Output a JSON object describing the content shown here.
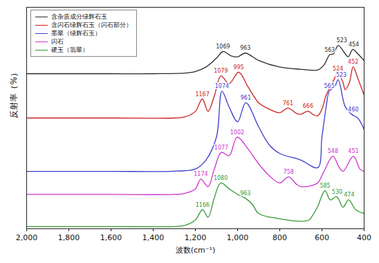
{
  "chart_data": {
    "type": "line",
    "x_label": "波数(cm⁻¹)",
    "y_label": "反射率（%）",
    "xlim": [
      2000,
      400
    ],
    "xticks": [
      2000,
      1800,
      1600,
      1400,
      1200,
      1000,
      800,
      600,
      400
    ],
    "ylim": [
      0,
      100
    ],
    "tick_labels": "x",
    "grid": false,
    "legend": "top-left",
    "series": [
      {
        "name": "含杂质成分绿辉石玉",
        "color": "#2b2b2b",
        "x": [
          2000,
          1800,
          1600,
          1400,
          1250,
          1200,
          1150,
          1100,
          1069,
          1030,
          1000,
          963,
          900,
          800,
          700,
          620,
          590,
          563,
          545,
          523,
          490,
          475,
          454,
          430,
          400
        ],
        "values": [
          70,
          70,
          70,
          70,
          70.3,
          71,
          73,
          77,
          80,
          78,
          77.6,
          79.3,
          76,
          73,
          72,
          71.7,
          74,
          78.6,
          79,
          82.8,
          79,
          77.6,
          81,
          79,
          75.9
        ],
        "peaks": [
          1069,
          963,
          563,
          523,
          454
        ]
      },
      {
        "name": "含闪石绿辉石玉（闪石部分）",
        "color": "#cc1f1f",
        "x": [
          2000,
          1600,
          1300,
          1250,
          1200,
          1167,
          1140,
          1110,
          1079,
          1040,
          995,
          950,
          900,
          850,
          800,
          761,
          720,
          700,
          666,
          640,
          620,
          600,
          580,
          550,
          524,
          500,
          490,
          470,
          452,
          430,
          400
        ],
        "values": [
          50,
          50,
          50,
          50.5,
          53,
          58.6,
          53,
          60,
          69,
          65.5,
          70.7,
          64,
          56.9,
          54,
          52.4,
          54.5,
          52,
          51.7,
          53.1,
          51.5,
          51,
          54,
          60.3,
          66,
          70,
          66,
          62.8,
          66,
          73.1,
          68,
          60.3
        ],
        "peaks": [
          1167,
          1079,
          995,
          761,
          666,
          524,
          452
        ]
      },
      {
        "name": "墨翠（绿辉石玉）",
        "color": "#3a3acc",
        "x": [
          2000,
          1600,
          1300,
          1200,
          1150,
          1100,
          1074,
          1040,
          1000,
          961,
          900,
          850,
          800,
          700,
          620,
          600,
          580,
          565,
          540,
          523,
          490,
          460,
          430,
          400
        ],
        "values": [
          25.9,
          25.9,
          26,
          27,
          31,
          41.4,
          62.1,
          55,
          48.3,
          56.9,
          46,
          37.9,
          34,
          31,
          27.6,
          41.4,
          55,
          62.1,
          64,
          67.2,
          55.2,
          51.7,
          50,
          44.8
        ],
        "peaks": [
          1074,
          961,
          565,
          523,
          460
        ]
      },
      {
        "name": "闪石",
        "color": "#cc33cc",
        "x": [
          2000,
          1600,
          1300,
          1250,
          1200,
          1174,
          1140,
          1110,
          1077,
          1040,
          1002,
          950,
          900,
          850,
          800,
          758,
          720,
          700,
          650,
          620,
          590,
          548,
          520,
          500,
          451,
          420,
          400
        ],
        "values": [
          15.5,
          15.5,
          15.5,
          16,
          18,
          22.4,
          19,
          27,
          34.5,
          33,
          41.4,
          36,
          29.3,
          24,
          20.7,
          23.4,
          20,
          19,
          19.5,
          20.7,
          26,
          32.8,
          28,
          25.9,
          32.8,
          27,
          25.9
        ],
        "peaks": [
          1174,
          1077,
          1002,
          758,
          548,
          451
        ]
      },
      {
        "name": "硬玉（翡翠）",
        "color": "#339933",
        "x": [
          2000,
          1600,
          1300,
          1250,
          1200,
          1166,
          1140,
          1110,
          1080,
          1040,
          1000,
          963,
          930,
          900,
          800,
          700,
          660,
          650,
          620,
          600,
          585,
          560,
          530,
          500,
          474,
          440,
          400
        ],
        "values": [
          1,
          1,
          1,
          1.5,
          4,
          8.6,
          5.2,
          14,
          20.7,
          18,
          15.5,
          13.8,
          11,
          6.9,
          4.5,
          3.4,
          4,
          5.2,
          10,
          15,
          17.2,
          13,
          14.5,
          9.7,
          13.1,
          8.6,
          6.9
        ],
        "peaks": [
          1166,
          1080,
          963,
          585,
          530,
          474
        ]
      }
    ]
  }
}
